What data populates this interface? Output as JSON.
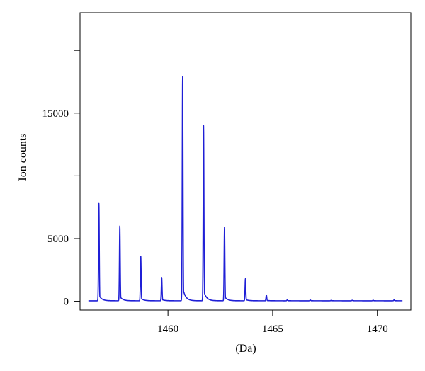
{
  "chart_data": {
    "type": "line",
    "title": "",
    "xlabel": "(Da)",
    "ylabel": "Ion counts",
    "xlim": [
      1455.8,
      1471.6
    ],
    "ylim": [
      -700,
      23000
    ],
    "x_ticks": [
      1460,
      1465,
      1470
    ],
    "x_tick_labels": [
      "1460",
      "1465",
      "1470"
    ],
    "y_ticks": [
      0,
      5000,
      10000,
      15000,
      20000
    ],
    "y_tick_labels": [
      "0",
      "5000",
      "",
      "15000",
      ""
    ],
    "grid": false,
    "legend": "none",
    "color": "#1f1fd6",
    "baseline": 40,
    "x_start": 1456.2,
    "x_end": 1471.2,
    "series": [
      {
        "peaks": [
          {
            "x": 1456.7,
            "y": 7800
          },
          {
            "x": 1457.7,
            "y": 6000
          },
          {
            "x": 1458.7,
            "y": 3600
          },
          {
            "x": 1459.7,
            "y": 1900
          },
          {
            "x": 1460.7,
            "y": 17900
          },
          {
            "x": 1461.7,
            "y": 14000
          },
          {
            "x": 1462.7,
            "y": 5900
          },
          {
            "x": 1463.7,
            "y": 1800
          },
          {
            "x": 1464.7,
            "y": 500
          },
          {
            "x": 1465.7,
            "y": 120
          },
          {
            "x": 1466.8,
            "y": 100
          },
          {
            "x": 1467.8,
            "y": 90
          },
          {
            "x": 1468.8,
            "y": 80
          },
          {
            "x": 1469.8,
            "y": 90
          },
          {
            "x": 1470.8,
            "y": 110
          }
        ]
      }
    ]
  }
}
